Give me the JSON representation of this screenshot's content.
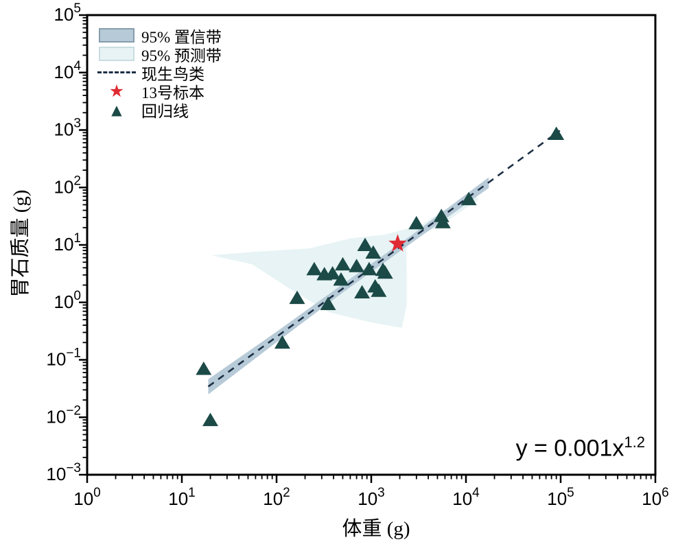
{
  "chart_data": {
    "type": "scatter",
    "title": "",
    "x_axis": {
      "label": "体重 (g)",
      "scale": "log",
      "min_exp": 0,
      "max_exp": 6,
      "tick_exponents": [
        0,
        1,
        2,
        3,
        4,
        5,
        6
      ]
    },
    "y_axis": {
      "label": "胃石质量 (g)",
      "scale": "log",
      "min_exp": -3,
      "max_exp": 5,
      "tick_exponents": [
        -3,
        -2,
        -1,
        0,
        1,
        2,
        3,
        4,
        5
      ]
    },
    "equation": {
      "base": "y = 0.001x",
      "exponent": "1.2"
    },
    "regression_line": {
      "coefficient": 0.001,
      "power": 1.2,
      "x_start": 19,
      "x_end": 98000,
      "style": "dashed"
    },
    "series": [
      {
        "name": "回归线",
        "marker": "triangle",
        "points": [
          [
            17,
            0.07
          ],
          [
            20,
            0.009
          ],
          [
            115,
            0.2
          ],
          [
            165,
            1.2
          ],
          [
            350,
            0.94
          ],
          [
            250,
            3.8
          ],
          [
            320,
            3.1
          ],
          [
            390,
            3.2
          ],
          [
            480,
            2.5
          ],
          [
            500,
            4.6
          ],
          [
            700,
            4.3
          ],
          [
            860,
            10
          ],
          [
            1050,
            7.4
          ],
          [
            950,
            3.8
          ],
          [
            1330,
            3.7
          ],
          [
            800,
            1.5
          ],
          [
            1100,
            1.9
          ],
          [
            1400,
            3.3
          ],
          [
            1200,
            1.6
          ],
          [
            3000,
            24
          ],
          [
            5500,
            32
          ],
          [
            5700,
            25
          ],
          [
            10700,
            63
          ],
          [
            90000,
            860
          ]
        ]
      },
      {
        "name": "13号标本",
        "marker": "star",
        "points": [
          [
            1900,
            10.5
          ]
        ]
      }
    ],
    "confidence_band": {
      "label": "95% 置信带",
      "outline": [
        [
          19,
          0.046
        ],
        [
          95,
          0.29
        ],
        [
          505,
          2.1
        ],
        [
          2700,
          15
        ],
        [
          17400,
          150
        ],
        [
          17400,
          98
        ],
        [
          2700,
          11
        ],
        [
          505,
          1.5
        ],
        [
          95,
          0.19
        ],
        [
          19,
          0.025
        ]
      ]
    },
    "prediction_band": {
      "label": "95% 预测带",
      "outline": [
        [
          20.5,
          6.6
        ],
        [
          60,
          7.6
        ],
        [
          220,
          8.7
        ],
        [
          600,
          13
        ],
        [
          1370,
          15
        ],
        [
          2100,
          18
        ],
        [
          3500,
          23
        ],
        [
          5200,
          36
        ],
        [
          12400,
          81
        ],
        [
          13500,
          61
        ],
        [
          5200,
          21
        ],
        [
          2340,
          11.5
        ],
        [
          2370,
          3.1
        ],
        [
          2370,
          0.89
        ],
        [
          2100,
          0.36
        ],
        [
          985,
          0.45
        ],
        [
          350,
          0.68
        ],
        [
          133,
          1.8
        ],
        [
          55,
          4.6
        ]
      ]
    },
    "legend": {
      "items": [
        {
          "label": "95% 置信带",
          "swatch": "confidence"
        },
        {
          "label": "95% 预测带",
          "swatch": "prediction"
        },
        {
          "label": "现生鸟类",
          "swatch": "dashed-line"
        },
        {
          "label": "13号标本",
          "swatch": "star",
          "glyph": "★"
        },
        {
          "label": "回归线",
          "swatch": "triangle",
          "glyph": "▲"
        }
      ],
      "position": "top-left"
    },
    "colors": {
      "triangle": "#1B4A47",
      "star": "#E02A33",
      "confidence_fill": "#B7CAD7",
      "confidence_edge": "#859DAB",
      "prediction_fill": "#E7F3F4",
      "prediction_edge": "#C9DDE0",
      "regression_line": "#1C2F45",
      "axis": "#000000"
    },
    "grid": false
  }
}
